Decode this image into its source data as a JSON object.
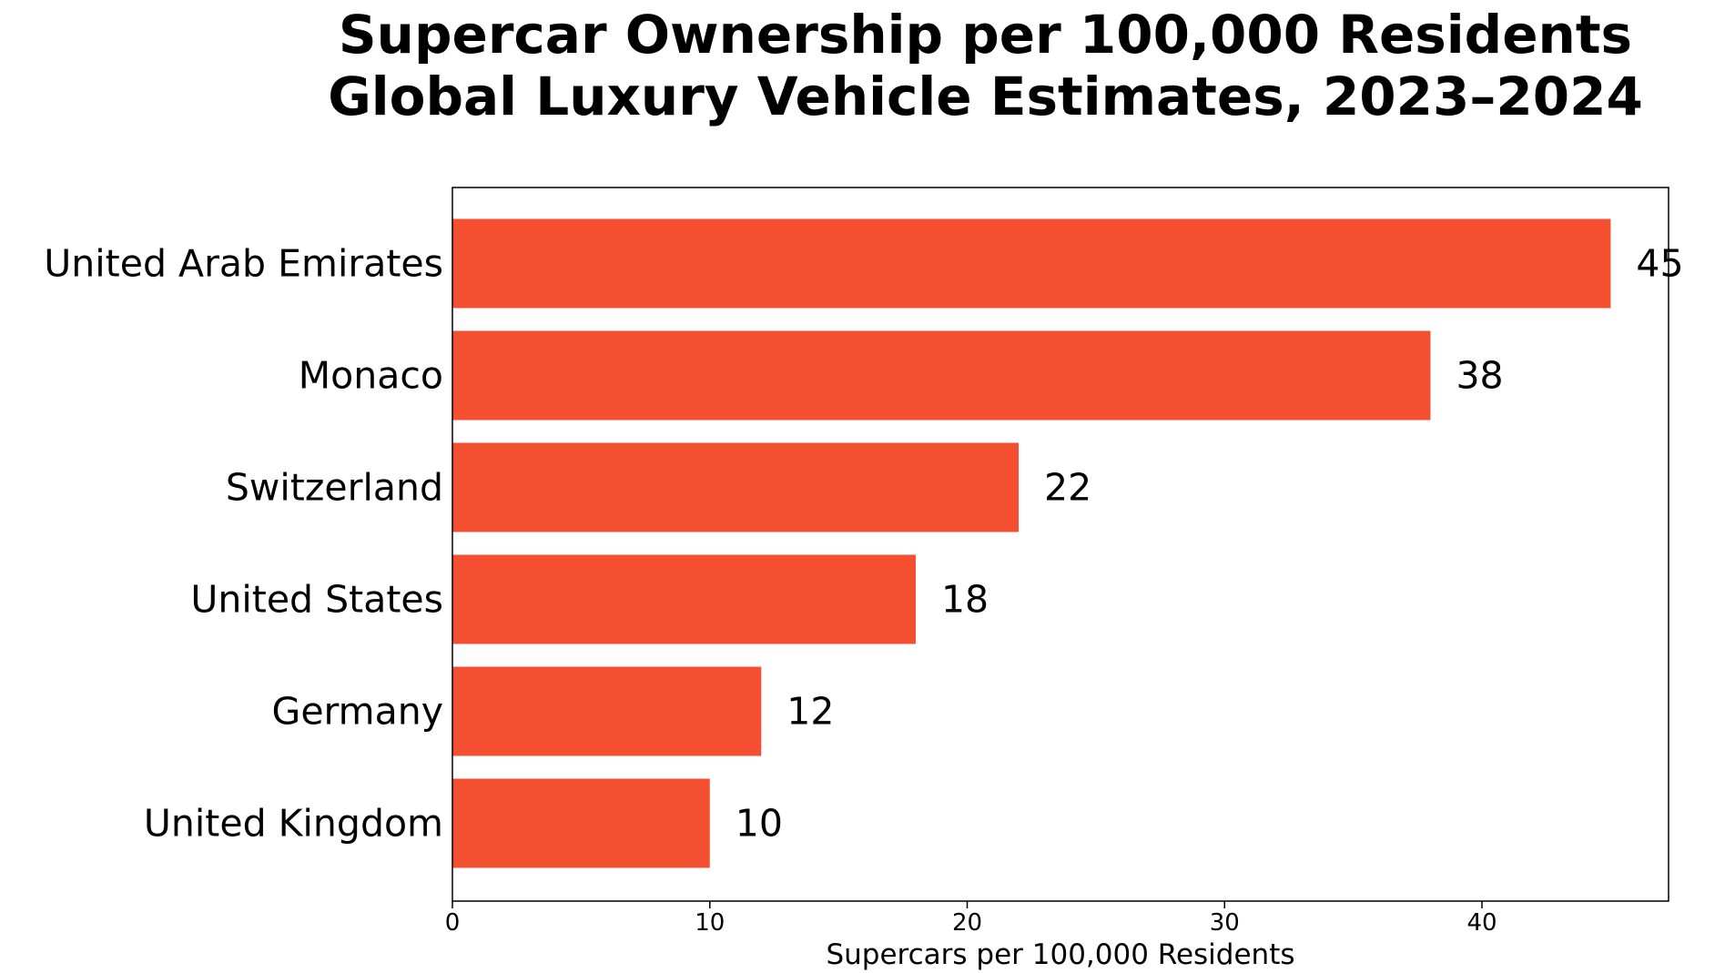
{
  "chart_data": {
    "type": "bar",
    "orientation": "horizontal",
    "title_lines": [
      "Supercar Ownership per 100,000 Residents",
      "Global Luxury Vehicle Estimates, 2023–2024"
    ],
    "xlabel": "Supercars per 100,000 Residents",
    "ylabel": "",
    "categories": [
      "United Arab Emirates",
      "Monaco",
      "Switzerland",
      "United States",
      "Germany",
      "United Kingdom"
    ],
    "values": [
      45,
      38,
      22,
      18,
      12,
      10
    ],
    "xlim": [
      0,
      47.25
    ],
    "xticks": [
      0,
      10,
      20,
      30,
      40
    ],
    "grid": false,
    "bar_color": "#f34f30",
    "data_labels": [
      "45",
      "38",
      "22",
      "18",
      "12",
      "10"
    ]
  }
}
